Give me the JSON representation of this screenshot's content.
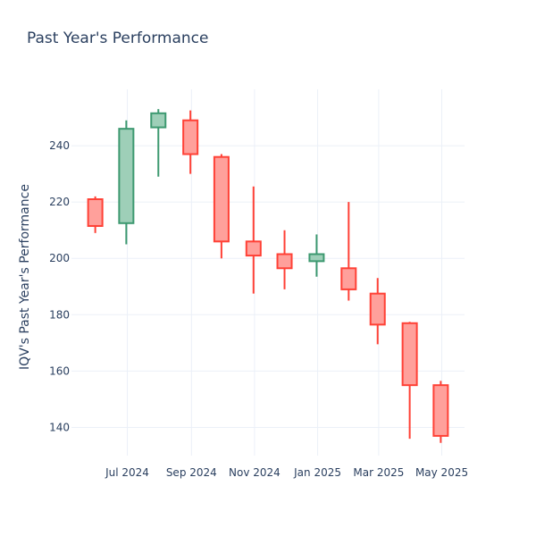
{
  "chart_data": {
    "type": "candlestick",
    "title": "Past Year's Performance",
    "xlabel": "",
    "ylabel": "IQV's Past Year's Performance",
    "ylim": [
      130,
      260
    ],
    "yticks": [
      140,
      160,
      180,
      200,
      220,
      240
    ],
    "xrange": [
      "2024-05-08",
      "2025-05-23"
    ],
    "xticks": [
      {
        "date": "2024-07-01",
        "label": "Jul 2024"
      },
      {
        "date": "2024-09-01",
        "label": "Sep 2024"
      },
      {
        "date": "2024-11-01",
        "label": "Nov 2024"
      },
      {
        "date": "2025-01-01",
        "label": "Jan 2025"
      },
      {
        "date": "2025-03-01",
        "label": "Mar 2025"
      },
      {
        "date": "2025-05-01",
        "label": "May 2025"
      }
    ],
    "candles": [
      {
        "date": "2024-05-31",
        "open": 221,
        "high": 222,
        "low": 209,
        "close": 211.5
      },
      {
        "date": "2024-06-30",
        "open": 212.5,
        "high": 249,
        "low": 205,
        "close": 246
      },
      {
        "date": "2024-07-31",
        "open": 246.5,
        "high": 253,
        "low": 229,
        "close": 251.5
      },
      {
        "date": "2024-08-31",
        "open": 249,
        "high": 252.5,
        "low": 230,
        "close": 237
      },
      {
        "date": "2024-09-30",
        "open": 236,
        "high": 237,
        "low": 200,
        "close": 206
      },
      {
        "date": "2024-10-31",
        "open": 206,
        "high": 225.5,
        "low": 187.5,
        "close": 201
      },
      {
        "date": "2024-11-30",
        "open": 201.5,
        "high": 210,
        "low": 189,
        "close": 196.5
      },
      {
        "date": "2024-12-31",
        "open": 199,
        "high": 208.5,
        "low": 193.5,
        "close": 201.5
      },
      {
        "date": "2025-01-31",
        "open": 196.5,
        "high": 220,
        "low": 185,
        "close": 189
      },
      {
        "date": "2025-02-28",
        "open": 187.5,
        "high": 193,
        "low": 169.5,
        "close": 176.5
      },
      {
        "date": "2025-03-31",
        "open": 177,
        "high": 177.5,
        "low": 136,
        "close": 155
      },
      {
        "date": "2025-04-30",
        "open": 155,
        "high": 156.5,
        "low": 134.5,
        "close": 137
      }
    ],
    "increasing_color": "#3d9970",
    "increasing_fill": "#9ecfb8",
    "decreasing_color": "#ff4136",
    "decreasing_fill": "#ffa09b",
    "grid": true,
    "legend": "none"
  }
}
